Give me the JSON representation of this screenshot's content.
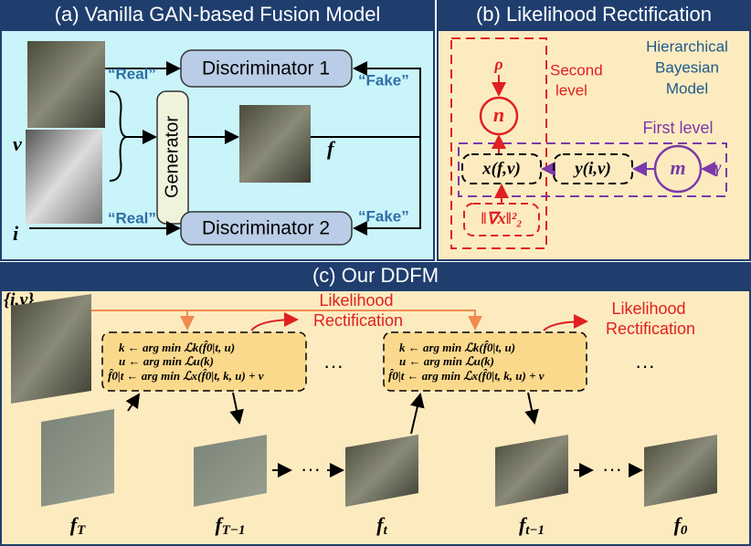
{
  "panel_a": {
    "title": "(a) Vanilla GAN-based Fusion Model",
    "discriminator_1": "Discriminator 1",
    "discriminator_2": "Discriminator 2",
    "generator": "Generator",
    "real_labels": [
      "“Real”",
      "“Real”"
    ],
    "fake_labels": [
      "“Fake”",
      "“Fake”"
    ],
    "v": "v",
    "i": "i",
    "f": "f"
  },
  "panel_b": {
    "title": "(b) Likelihood Rectification",
    "rho": "ρ",
    "n": "n",
    "second_level": [
      "Second",
      "level"
    ],
    "model": [
      "Hierarchical",
      "Bayesian",
      "Model"
    ],
    "first_level": "First level",
    "x_node": "x(f,v)",
    "y_node": "y(i,v)",
    "m": "m",
    "gamma": "γ",
    "grad_node": "‖∇x‖²₂"
  },
  "panel_c": {
    "title": "(c) Our DDFM",
    "input": "{i,v}",
    "rectification_labels": [
      [
        "Likelihood",
        "Rectification"
      ],
      [
        "Likelihood",
        "Rectification"
      ]
    ],
    "equations": [
      [
        "k ← arg min ℒk(f̂0|t, u)",
        "u ← arg min ℒu(k)",
        "f̂0|t ← arg min ℒx(f̂0|t, k, u) + v"
      ],
      [
        "k ← arg min ℒk(f̂0|t, u)",
        "u ← arg min ℒu(k)",
        "f̂0|t ← arg min ℒx(f̂0|t, k, u) + v"
      ]
    ],
    "ellipses": [
      "···",
      "···",
      "···",
      "···"
    ],
    "steps": [
      {
        "base": "f",
        "sub": "T"
      },
      {
        "base": "f",
        "sub": "T−1"
      },
      {
        "base": "f",
        "sub": "t"
      },
      {
        "base": "f",
        "sub": "t−1"
      },
      {
        "base": "f",
        "sub": "0"
      }
    ]
  }
}
